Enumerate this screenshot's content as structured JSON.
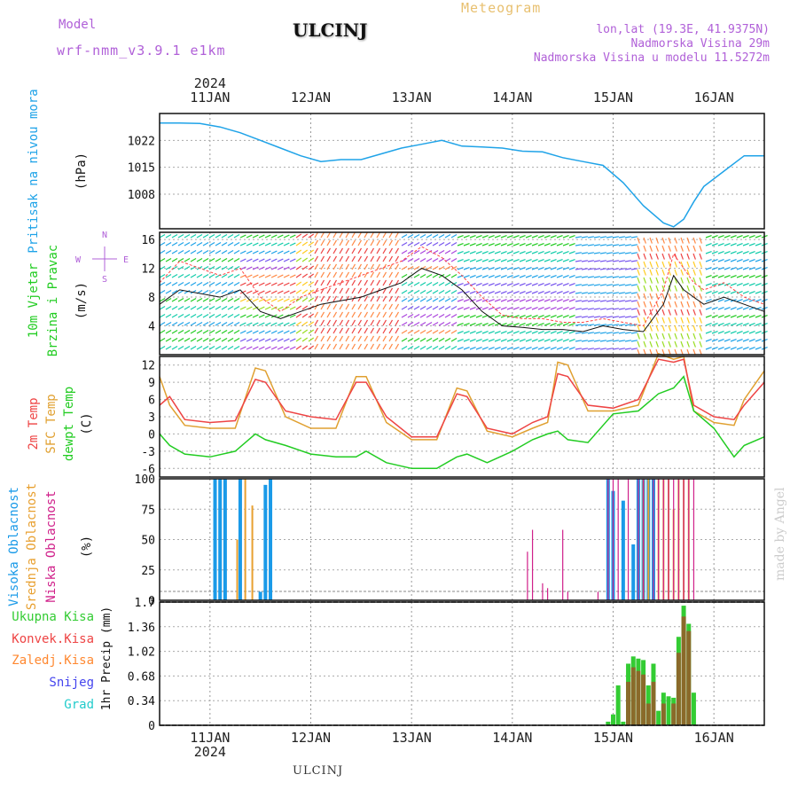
{
  "header": {
    "model_label": "Model",
    "model_name": "wrf-nmm_v3.9.1 e1km",
    "station": "ULCINJ",
    "title": "Meteogram",
    "lonlat": "lon,lat (19.3E, 41.9375N)",
    "elevation": "Nadmorska Visina 29m",
    "model_elevation": "Nadmorska Visina u modelu 11.5272m"
  },
  "time_axis": {
    "year": "2024",
    "days": [
      "11JAN",
      "12JAN",
      "13JAN",
      "14JAN",
      "15JAN",
      "16JAN"
    ],
    "range_days": [
      10.5,
      16.5
    ]
  },
  "watermark": "made by Angel",
  "footer": "ULCINJ",
  "colors": {
    "pressure": "#1fa3e8",
    "wind_speed": "#111111",
    "wind_gust": "#ff4444",
    "t2m": "#ee4444",
    "tsfc": "#e0a030",
    "dewpt": "#22cc22",
    "high_cloud": "#1a9ae8",
    "mid_cloud": "#e8a030",
    "low_cloud": "#d0208a",
    "total_precip": "#33cc33",
    "conv_precip": "#ee4444",
    "frz_precip": "#ff8830",
    "snow": "#4444ee",
    "graupel": "#22cccc"
  },
  "chart_data": [
    {
      "type": "line",
      "name": "pressure",
      "ylabels": [
        "Pritisak na nivou mora",
        "(hPa)"
      ],
      "ylim": [
        999,
        1029
      ],
      "yticks": [
        1008,
        1015,
        1022
      ],
      "grid": true,
      "x": [
        10.5,
        10.7,
        10.9,
        11.1,
        11.3,
        11.5,
        11.7,
        11.9,
        12.1,
        12.3,
        12.5,
        12.7,
        12.9,
        13.1,
        13.3,
        13.5,
        13.7,
        13.9,
        14.1,
        14.3,
        14.5,
        14.7,
        14.9,
        15.1,
        15.3,
        15.5,
        15.6,
        15.7,
        15.8,
        15.9,
        16.1,
        16.3,
        16.5
      ],
      "y": [
        1026.5,
        1026.5,
        1026.4,
        1025.5,
        1024,
        1022,
        1020,
        1018,
        1016.5,
        1017,
        1017,
        1018.5,
        1020,
        1021,
        1022,
        1020.5,
        1020.3,
        1020,
        1019.2,
        1019,
        1017.5,
        1016.5,
        1015.5,
        1011,
        1005,
        1000.5,
        999.5,
        1001.5,
        1006,
        1010,
        1014,
        1018,
        1018
      ]
    },
    {
      "type": "line",
      "name": "wind",
      "ylabels": [
        "10m Vjetar",
        "Brzina i Pravac",
        "(m/s)"
      ],
      "ylim": [
        0,
        17
      ],
      "yticks": [
        4,
        8,
        12,
        16
      ],
      "compass": [
        "N",
        "S",
        "E",
        "W"
      ],
      "series": [
        {
          "x": [
            10.5,
            10.7,
            10.9,
            11.1,
            11.3,
            11.5,
            11.7,
            11.9,
            12.1,
            12.3,
            12.5,
            12.7,
            12.9,
            13.1,
            13.3,
            13.5,
            13.7,
            13.9,
            14.1,
            14.3,
            14.5,
            14.7,
            14.9,
            15.1,
            15.3,
            15.5,
            15.6,
            15.7,
            15.8,
            15.9,
            16.1,
            16.3,
            16.5
          ],
          "y": [
            7,
            9,
            8.5,
            8,
            9,
            6,
            5,
            6,
            7,
            7.5,
            8,
            9,
            10,
            12,
            11,
            9,
            6,
            4,
            3.8,
            3.5,
            3.5,
            3.2,
            4,
            3.5,
            3.2,
            7,
            11,
            9,
            8,
            7,
            8,
            7,
            6
          ]
        },
        {
          "x": [
            10.5,
            10.7,
            10.9,
            11.1,
            11.3,
            11.5,
            11.7,
            11.9,
            12.1,
            12.3,
            12.5,
            12.7,
            12.9,
            13.1,
            13.3,
            13.5,
            13.7,
            13.9,
            14.1,
            14.3,
            14.5,
            14.7,
            14.9,
            15.1,
            15.3,
            15.5,
            15.6,
            15.7,
            15.8,
            15.9,
            16.1,
            16.3,
            16.5
          ],
          "y": [
            10,
            13,
            12,
            11,
            12,
            8,
            6,
            8,
            9,
            10,
            11,
            12,
            13,
            15,
            13.5,
            11,
            8,
            5.5,
            5,
            5,
            4.5,
            4.5,
            5,
            4.5,
            4,
            9,
            14,
            12,
            10,
            9,
            10,
            8,
            7
          ]
        }
      ]
    },
    {
      "type": "line",
      "name": "temperature",
      "ylabels": [
        "2m Temp",
        "SFC Temp",
        "dewpt Temp",
        "(C)"
      ],
      "ylim": [
        -7.5,
        13.5
      ],
      "yticks": [
        -6,
        -3,
        0,
        3,
        6,
        9,
        12
      ],
      "series": [
        {
          "x": [
            10.5,
            10.6,
            10.75,
            11.0,
            11.25,
            11.45,
            11.55,
            11.75,
            12.0,
            12.25,
            12.45,
            12.55,
            12.75,
            13.0,
            13.25,
            13.45,
            13.55,
            13.75,
            14.0,
            14.2,
            14.35,
            14.45,
            14.55,
            14.75,
            15.0,
            15.25,
            15.45,
            15.6,
            15.7,
            15.8,
            16.0,
            16.2,
            16.3,
            16.5
          ],
          "y": [
            5,
            6.5,
            2.5,
            2,
            2.3,
            9.5,
            9,
            4,
            3,
            2.5,
            9,
            9,
            3,
            -0.5,
            -0.5,
            7,
            6.5,
            1,
            0,
            2,
            3,
            10.5,
            10,
            5,
            4.5,
            6,
            13,
            12.5,
            13,
            5,
            3,
            2.5,
            5,
            9
          ]
        },
        {
          "x": [
            10.5,
            10.6,
            10.75,
            11.0,
            11.25,
            11.45,
            11.55,
            11.75,
            12.0,
            12.25,
            12.45,
            12.55,
            12.75,
            13.0,
            13.25,
            13.45,
            13.55,
            13.75,
            14.0,
            14.2,
            14.35,
            14.45,
            14.55,
            14.75,
            15.0,
            15.25,
            15.45,
            15.6,
            15.7,
            15.8,
            16.0,
            16.2,
            16.3,
            16.5
          ],
          "y": [
            10,
            5,
            1.5,
            1,
            1,
            11.5,
            11,
            3,
            1,
            1,
            10,
            10,
            2,
            -1,
            -1,
            8,
            7.5,
            0.5,
            -0.5,
            1,
            2,
            12.5,
            12,
            4,
            4,
            5,
            14,
            13,
            13.5,
            4,
            2,
            1.5,
            6,
            11
          ]
        },
        {
          "x": [
            10.5,
            10.6,
            10.75,
            11.0,
            11.25,
            11.45,
            11.55,
            11.75,
            12.0,
            12.25,
            12.45,
            12.55,
            12.75,
            13.0,
            13.25,
            13.45,
            13.55,
            13.75,
            14.0,
            14.2,
            14.35,
            14.45,
            14.55,
            14.75,
            15.0,
            15.25,
            15.45,
            15.6,
            15.7,
            15.8,
            16.0,
            16.2,
            16.3,
            16.5
          ],
          "y": [
            0,
            -2,
            -3.5,
            -4,
            -3,
            0,
            -1,
            -2,
            -3.5,
            -4,
            -4,
            -3,
            -5,
            -6,
            -6,
            -4,
            -3.5,
            -5,
            -3,
            -1,
            0,
            0.5,
            -1,
            -1.5,
            3.5,
            4,
            7,
            8,
            10,
            4,
            1,
            -4,
            -2,
            -0.5
          ]
        }
      ]
    },
    {
      "type": "bar",
      "name": "cloud",
      "ylabels": [
        "Visoka Oblacnost",
        "Srednja Oblacnost",
        "Niska Oblacnost",
        "(%)"
      ],
      "ylim": [
        0,
        100
      ],
      "yticks": [
        0,
        25,
        50,
        75,
        100
      ],
      "high": {
        "x": [
          11.05,
          11.1,
          11.15,
          11.3,
          11.5,
          11.55,
          11.6,
          14.95,
          15.0,
          15.1,
          15.2,
          15.25,
          15.3,
          15.35,
          15.4
        ],
        "y": [
          100,
          100,
          100,
          100,
          7,
          95,
          100,
          100,
          90,
          82,
          46,
          100,
          100,
          100,
          100
        ]
      },
      "mid": {
        "x": [
          11.27,
          11.35,
          11.42,
          15.3,
          15.35,
          15.45,
          15.5,
          15.55,
          15.6,
          15.65,
          15.7,
          15.75
        ],
        "y": [
          50,
          100,
          78,
          100,
          100,
          100,
          100,
          100,
          75,
          100,
          100,
          100
        ]
      },
      "low": {
        "x": [
          14.15,
          14.2,
          14.3,
          14.35,
          14.5,
          14.55,
          14.85,
          14.95,
          15.0,
          15.05,
          15.15,
          15.25,
          15.3,
          15.4,
          15.45,
          15.5,
          15.55,
          15.6,
          15.65,
          15.7,
          15.75,
          15.8
        ],
        "y": [
          40,
          58,
          14,
          10,
          58,
          7,
          7,
          100,
          100,
          100,
          100,
          100,
          100,
          100,
          100,
          100,
          100,
          100,
          100,
          100,
          100,
          100
        ]
      }
    },
    {
      "type": "bar",
      "name": "precipitation",
      "ylabels": [
        "1hr Precip (mm)"
      ],
      "legend": [
        "Ukupna Kisa",
        "Konvek.Kisa",
        "Zaledj.Kisa",
        "Snijeg",
        "Grad"
      ],
      "ylim": [
        0,
        1.7
      ],
      "yticks": [
        0,
        0.34,
        0.68,
        1.02,
        1.36,
        1.7
      ],
      "x": [
        14.95,
        15.0,
        15.05,
        15.1,
        15.15,
        15.2,
        15.25,
        15.3,
        15.35,
        15.4,
        15.45,
        15.5,
        15.55,
        15.6,
        15.65,
        15.7,
        15.75,
        15.8
      ],
      "y": [
        0.05,
        0.15,
        0.55,
        0.05,
        0.85,
        0.95,
        0.92,
        0.9,
        0.55,
        0.85,
        0.2,
        0.45,
        0.4,
        0.38,
        1.22,
        1.65,
        1.4,
        0.45
      ],
      "conv": [
        0,
        0,
        0,
        0,
        0.6,
        0.8,
        0.75,
        0.7,
        0.3,
        0.6,
        0,
        0.3,
        0,
        0.3,
        1.0,
        1.5,
        1.3,
        0
      ]
    }
  ]
}
